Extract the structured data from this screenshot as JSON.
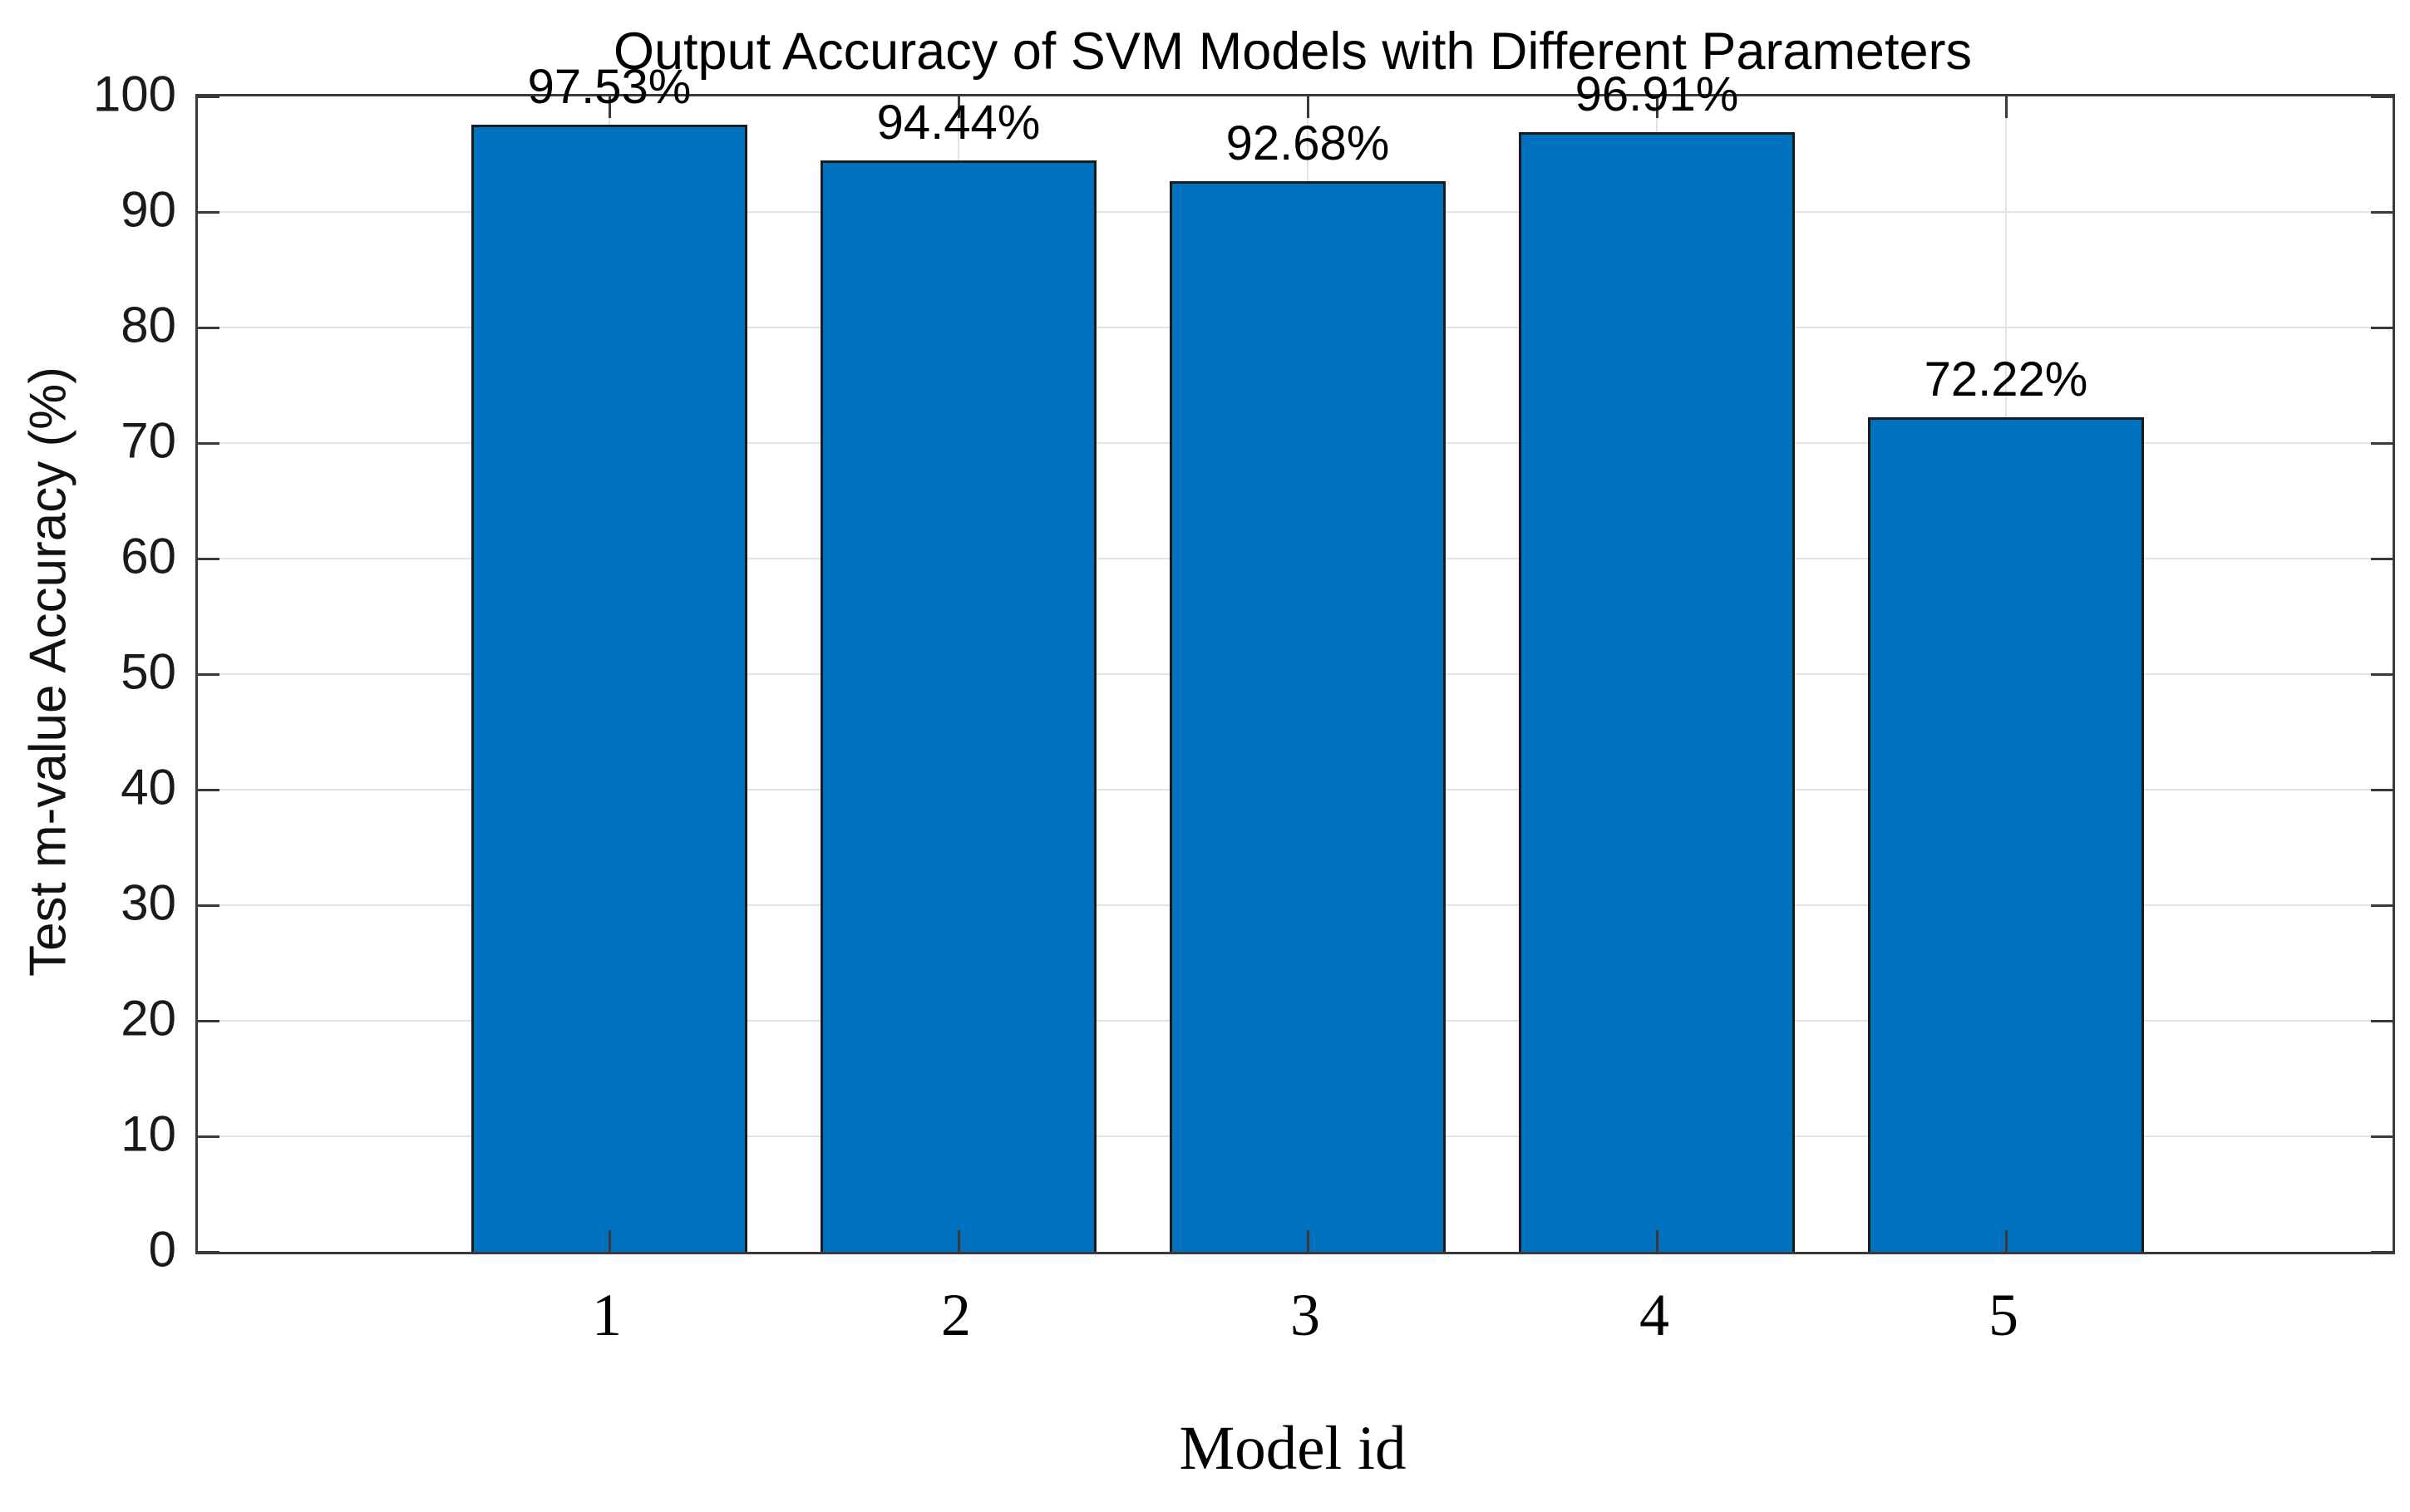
{
  "chart_data": {
    "type": "bar",
    "title": "Output Accuracy of SVM Models with Different Parameters",
    "xlabel": "Model id",
    "ylabel": "Test m-value Accuracy (%)",
    "categories": [
      "1",
      "2",
      "3",
      "4",
      "5"
    ],
    "values": [
      97.53,
      94.44,
      92.68,
      96.91,
      72.22
    ],
    "bar_labels": [
      "97.53%",
      "94.44%",
      "92.68%",
      "96.91%",
      "72.22%"
    ],
    "y_ticks": [
      0,
      10,
      20,
      30,
      40,
      50,
      60,
      70,
      80,
      90,
      100
    ],
    "ylim": [
      0,
      100
    ],
    "grid": true,
    "legend": "none",
    "bar_color": "#0072BD",
    "bar_edge_color": "#1b1b1b",
    "axis_color": "#3a3a3a",
    "grid_color": "#e2e2e2"
  }
}
